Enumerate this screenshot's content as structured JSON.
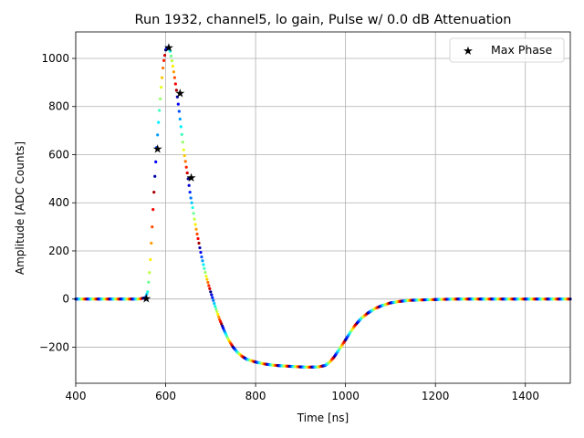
{
  "chart_data": {
    "type": "scatter",
    "title": "Run 1932, channel5, lo gain, Pulse w/ 0.0 dB Attenuation",
    "xlabel": "Time [ns]",
    "ylabel": "Amplitude [ADC Counts]",
    "xlim": [
      400,
      1500
    ],
    "ylim": [
      -350,
      1110
    ],
    "xticks": [
      400,
      600,
      800,
      1000,
      1200,
      1400
    ],
    "yticks": [
      -200,
      0,
      200,
      400,
      600,
      800,
      1000
    ],
    "grid": true,
    "legend": {
      "placement": "top-right",
      "entries": [
        "Max Phase"
      ]
    },
    "colormap": "jet",
    "pulse_waveform": {
      "description": "colored sample points, color cycles through phases",
      "x": [
        400,
        540,
        555,
        560,
        565,
        570,
        575,
        580,
        585,
        590,
        595,
        600,
        605,
        610,
        615,
        620,
        625,
        630,
        635,
        640,
        645,
        650,
        655,
        660,
        665,
        670,
        680,
        690,
        700,
        710,
        720,
        730,
        740,
        750,
        760,
        770,
        780,
        800,
        820,
        840,
        860,
        880,
        900,
        920,
        940,
        955,
        965,
        975,
        985,
        1000,
        1010,
        1020,
        1035,
        1050,
        1065,
        1080,
        1100,
        1120,
        1140,
        1160,
        1180,
        1200,
        1250,
        1300,
        1400,
        1500
      ],
      "y": [
        0,
        0,
        5,
        30,
        130,
        300,
        480,
        630,
        760,
        880,
        980,
        1035,
        1048,
        1030,
        980,
        920,
        855,
        780,
        700,
        620,
        560,
        500,
        430,
        380,
        320,
        270,
        175,
        95,
        30,
        -30,
        -85,
        -130,
        -170,
        -200,
        -222,
        -238,
        -250,
        -262,
        -270,
        -275,
        -278,
        -280,
        -282,
        -283,
        -282,
        -276,
        -262,
        -240,
        -212,
        -170,
        -140,
        -112,
        -80,
        -58,
        -40,
        -28,
        -16,
        -10,
        -6,
        -4,
        -3,
        -2,
        0,
        0,
        0,
        0
      ]
    },
    "max_phase": {
      "name": "Max Phase",
      "x": [
        557,
        582,
        607,
        632,
        657
      ],
      "y": [
        2,
        625,
        1045,
        855,
        505
      ]
    }
  }
}
